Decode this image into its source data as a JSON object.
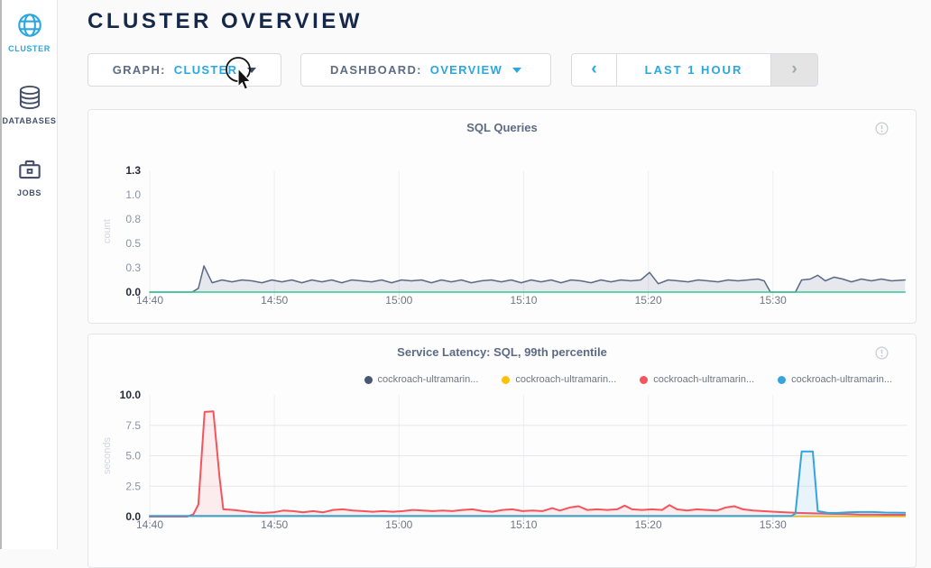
{
  "sidebar": {
    "items": [
      {
        "label": "CLUSTER",
        "icon": "globe-icon",
        "active": true
      },
      {
        "label": "DATABASES",
        "icon": "databases-icon",
        "active": false
      },
      {
        "label": "JOBS",
        "icon": "briefcase-icon",
        "active": false
      }
    ]
  },
  "header": {
    "title": "CLUSTER OVERVIEW"
  },
  "controls": {
    "graph": {
      "label": "GRAPH:",
      "value": "CLUSTER"
    },
    "dashboard": {
      "label": "DASHBOARD:",
      "value": "OVERVIEW"
    },
    "timewindow": {
      "prev": "‹",
      "range": "LAST 1 HOUR",
      "next": "›",
      "next_disabled": true
    }
  },
  "colors": {
    "accent": "#2ba7e0",
    "navy": "#152849",
    "slate_text": "#5e6c84",
    "sidebar_inactive": "#44506b",
    "grid": "#e7e8ea",
    "disabled_bg": "#e4e4e5"
  },
  "chart_data": [
    {
      "type": "area",
      "title": "SQL Queries",
      "ylabel": "count",
      "ylim": [
        0,
        1.3
      ],
      "x_range_minutes": [
        0,
        60.8
      ],
      "legend_visible": false,
      "ygrid": [],
      "yticks": [
        {
          "v": 0.0,
          "label": "0.0",
          "strong": true
        },
        {
          "v": 0.26,
          "label": "0.3"
        },
        {
          "v": 0.52,
          "label": "0.5"
        },
        {
          "v": 0.78,
          "label": "0.8"
        },
        {
          "v": 1.04,
          "label": "1.0"
        },
        {
          "v": 1.3,
          "label": "1.3",
          "strong": true
        }
      ],
      "xticks": [
        {
          "m": 0,
          "label": "14:40"
        },
        {
          "m": 10,
          "label": "14:50"
        },
        {
          "m": 20,
          "label": "15:00"
        },
        {
          "m": 30,
          "label": "15:10"
        },
        {
          "m": 40,
          "label": "15:20"
        },
        {
          "m": 50,
          "label": "15:30"
        }
      ],
      "series": [
        {
          "name": "",
          "color": "#5a6985",
          "fill": "rgba(90,105,133,0.14)",
          "width": 1.5,
          "points": [
            [
              0,
              0
            ],
            [
              3.4,
              0
            ],
            [
              3.9,
              0.04
            ],
            [
              4.35,
              0.28
            ],
            [
              5,
              0.1
            ],
            [
              5.8,
              0.13
            ],
            [
              6.6,
              0.11
            ],
            [
              7.4,
              0.13
            ],
            [
              8.2,
              0.12
            ],
            [
              9,
              0.1
            ],
            [
              9.8,
              0.13
            ],
            [
              10.6,
              0.11
            ],
            [
              11.4,
              0.13
            ],
            [
              12.2,
              0.1
            ],
            [
              13,
              0.13
            ],
            [
              13.8,
              0.11
            ],
            [
              14.6,
              0.13
            ],
            [
              15.4,
              0.1
            ],
            [
              16.2,
              0.13
            ],
            [
              17,
              0.12
            ],
            [
              17.8,
              0.11
            ],
            [
              18.6,
              0.13
            ],
            [
              19.4,
              0.1
            ],
            [
              20.2,
              0.13
            ],
            [
              21,
              0.12
            ],
            [
              21.8,
              0.13
            ],
            [
              22.6,
              0.1
            ],
            [
              23.4,
              0.13
            ],
            [
              24.2,
              0.11
            ],
            [
              25,
              0.13
            ],
            [
              25.8,
              0.1
            ],
            [
              26.6,
              0.12
            ],
            [
              27.4,
              0.13
            ],
            [
              28.2,
              0.11
            ],
            [
              29,
              0.13
            ],
            [
              29.8,
              0.1
            ],
            [
              30.6,
              0.13
            ],
            [
              31.4,
              0.11
            ],
            [
              32.2,
              0.13
            ],
            [
              33,
              0.1
            ],
            [
              33.8,
              0.13
            ],
            [
              34.6,
              0.12
            ],
            [
              35.4,
              0.1
            ],
            [
              36.2,
              0.13
            ],
            [
              37,
              0.11
            ],
            [
              37.8,
              0.13
            ],
            [
              38.6,
              0.12
            ],
            [
              39.4,
              0.13
            ],
            [
              40.1,
              0.21
            ],
            [
              40.8,
              0.09
            ],
            [
              41.6,
              0.13
            ],
            [
              42.4,
              0.12
            ],
            [
              43.2,
              0.11
            ],
            [
              44,
              0.13
            ],
            [
              44.8,
              0.12
            ],
            [
              45.6,
              0.11
            ],
            [
              46.4,
              0.13
            ],
            [
              47.2,
              0.12
            ],
            [
              48,
              0.13
            ],
            [
              48.8,
              0.14
            ],
            [
              49.3,
              0.12
            ],
            [
              49.8,
              0
            ],
            [
              51.8,
              0
            ],
            [
              52.3,
              0.13
            ],
            [
              53,
              0.14
            ],
            [
              53.6,
              0.18
            ],
            [
              54.2,
              0.12
            ],
            [
              54.9,
              0.16
            ],
            [
              55.6,
              0.14
            ],
            [
              56.3,
              0.11
            ],
            [
              57.1,
              0.14
            ],
            [
              57.9,
              0.12
            ],
            [
              58.7,
              0.14
            ],
            [
              59.5,
              0.12
            ],
            [
              60.6,
              0.13
            ]
          ]
        },
        {
          "name": "",
          "color": "#33c98e",
          "fill": null,
          "width": 1.5,
          "points": [
            [
              0,
              0
            ],
            [
              60.6,
              0
            ]
          ]
        }
      ]
    },
    {
      "type": "area",
      "title": "Service Latency: SQL, 99th percentile",
      "ylabel": "seconds",
      "ylim": [
        0,
        10
      ],
      "x_range_minutes": [
        0,
        60.8
      ],
      "legend_visible": true,
      "ygrid": [
        2.5,
        5,
        7.5
      ],
      "yticks": [
        {
          "v": 0.0,
          "label": "0.0",
          "strong": true
        },
        {
          "v": 2.5,
          "label": "2.5"
        },
        {
          "v": 5.0,
          "label": "5.0"
        },
        {
          "v": 7.5,
          "label": "7.5"
        },
        {
          "v": 10.0,
          "label": "10.0",
          "strong": true
        }
      ],
      "xticks": [
        {
          "m": 0,
          "label": "14:40"
        },
        {
          "m": 10,
          "label": "14:50"
        },
        {
          "m": 20,
          "label": "15:00"
        },
        {
          "m": 30,
          "label": "15:10"
        },
        {
          "m": 40,
          "label": "15:20"
        },
        {
          "m": 50,
          "label": "15:30"
        }
      ],
      "series": [
        {
          "name": "cockroach-ultramarin...",
          "color": "#475872",
          "fill": null,
          "width": 1.5,
          "points": [
            [
              0,
              0.02
            ],
            [
              60.6,
              0.02
            ]
          ]
        },
        {
          "name": "cockroach-ultramarin...",
          "color": "#ffc107",
          "fill": null,
          "width": 1.5,
          "points": [
            [
              0,
              0.03
            ],
            [
              60.6,
              0.03
            ]
          ]
        },
        {
          "name": "cockroach-ultramarin...",
          "color": "#f2555c",
          "fill": "rgba(242,85,92,0.10)",
          "width": 2,
          "points": [
            [
              0,
              0
            ],
            [
              3.0,
              0
            ],
            [
              3.5,
              0.2
            ],
            [
              3.9,
              1.0
            ],
            [
              4.4,
              8.6
            ],
            [
              5.1,
              8.65
            ],
            [
              5.6,
              3.2
            ],
            [
              5.9,
              0.6
            ],
            [
              6.7,
              0.55
            ],
            [
              7.5,
              0.45
            ],
            [
              8.3,
              0.35
            ],
            [
              9.1,
              0.3
            ],
            [
              9.9,
              0.35
            ],
            [
              10.7,
              0.5
            ],
            [
              11.5,
              0.45
            ],
            [
              12.3,
              0.35
            ],
            [
              13.1,
              0.45
            ],
            [
              13.9,
              0.35
            ],
            [
              14.7,
              0.55
            ],
            [
              15.5,
              0.6
            ],
            [
              16.3,
              0.5
            ],
            [
              17.1,
              0.45
            ],
            [
              17.9,
              0.4
            ],
            [
              18.7,
              0.45
            ],
            [
              19.5,
              0.4
            ],
            [
              20.3,
              0.45
            ],
            [
              21.1,
              0.55
            ],
            [
              21.9,
              0.5
            ],
            [
              22.7,
              0.45
            ],
            [
              23.5,
              0.5
            ],
            [
              24.3,
              0.45
            ],
            [
              25.1,
              0.55
            ],
            [
              25.9,
              0.6
            ],
            [
              26.7,
              0.45
            ],
            [
              27.5,
              0.4
            ],
            [
              28.3,
              0.55
            ],
            [
              29.1,
              0.6
            ],
            [
              29.9,
              0.45
            ],
            [
              30.7,
              0.5
            ],
            [
              31.5,
              0.45
            ],
            [
              32.3,
              0.7
            ],
            [
              32.9,
              0.5
            ],
            [
              33.7,
              0.75
            ],
            [
              34.4,
              0.85
            ],
            [
              35.1,
              0.55
            ],
            [
              35.9,
              0.6
            ],
            [
              36.7,
              0.55
            ],
            [
              37.5,
              0.6
            ],
            [
              38.1,
              0.9
            ],
            [
              38.7,
              0.6
            ],
            [
              39.5,
              0.55
            ],
            [
              40.3,
              0.6
            ],
            [
              41.1,
              0.55
            ],
            [
              41.7,
              0.95
            ],
            [
              42.3,
              0.6
            ],
            [
              43.1,
              0.5
            ],
            [
              43.9,
              0.6
            ],
            [
              44.7,
              0.55
            ],
            [
              45.5,
              0.5
            ],
            [
              46.2,
              0.75
            ],
            [
              46.9,
              0.85
            ],
            [
              47.6,
              0.6
            ],
            [
              48.4,
              0.5
            ],
            [
              49.2,
              0.45
            ],
            [
              50.1,
              0.4
            ],
            [
              51,
              0.35
            ],
            [
              52,
              0.3
            ],
            [
              53,
              0.28
            ],
            [
              54,
              0.25
            ],
            [
              55,
              0.22
            ],
            [
              56,
              0.2
            ],
            [
              57,
              0.17
            ],
            [
              58,
              0.16
            ],
            [
              59,
              0.15
            ],
            [
              60.6,
              0.15
            ]
          ]
        },
        {
          "name": "cockroach-ultramarin...",
          "color": "#35a4dc",
          "fill": "rgba(53,164,220,0.10)",
          "width": 2,
          "points": [
            [
              0,
              0.06
            ],
            [
              51.5,
              0.06
            ],
            [
              51.8,
              0.25
            ],
            [
              52.3,
              5.35
            ],
            [
              53.2,
              5.35
            ],
            [
              53.6,
              0.45
            ],
            [
              54.4,
              0.3
            ],
            [
              55.2,
              0.3
            ],
            [
              56,
              0.35
            ],
            [
              57,
              0.38
            ],
            [
              58,
              0.38
            ],
            [
              59,
              0.33
            ],
            [
              60.6,
              0.32
            ]
          ]
        }
      ]
    }
  ]
}
